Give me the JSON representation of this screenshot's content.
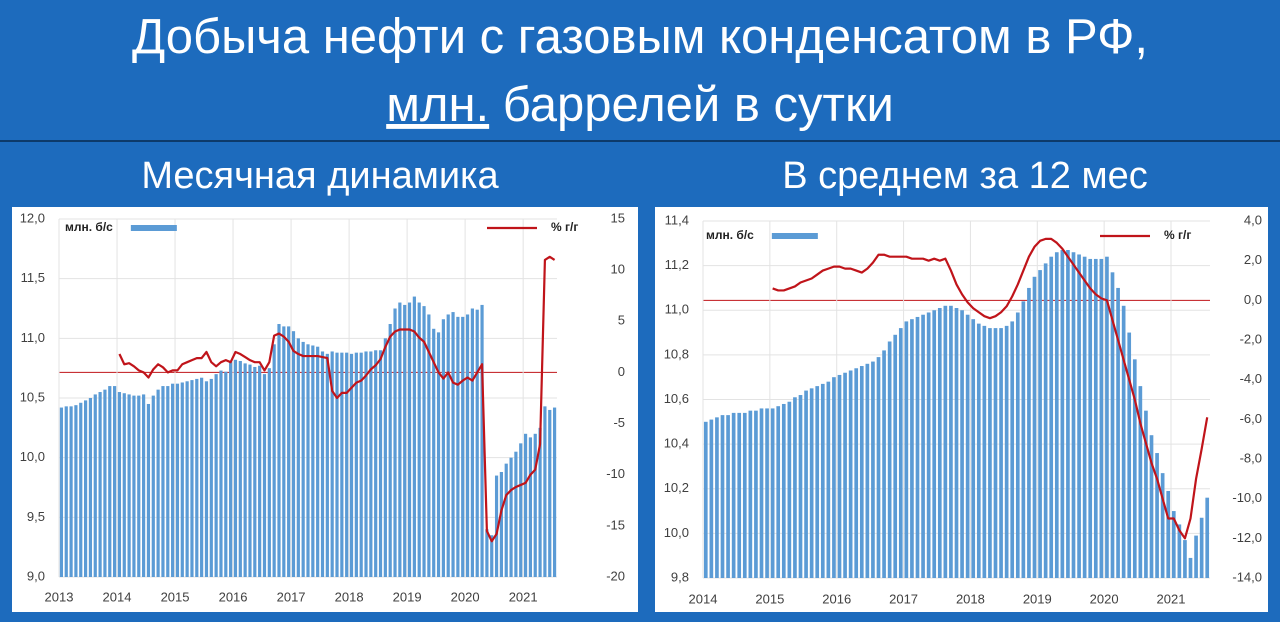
{
  "header": {
    "title": [
      "Добыча нефти с газовым конденсатом в РФ,",
      "млн.",
      "баррелей в сутки"
    ]
  },
  "chart_data": [
    {
      "type": "combo",
      "title": "Месячная динамика",
      "legend": "top",
      "grid": true,
      "categories": [
        "2013",
        null,
        null,
        null,
        null,
        null,
        null,
        null,
        null,
        null,
        null,
        null,
        "2014",
        null,
        null,
        null,
        null,
        null,
        null,
        null,
        null,
        null,
        null,
        null,
        "2015",
        null,
        null,
        null,
        null,
        null,
        null,
        null,
        null,
        null,
        null,
        null,
        "2016",
        null,
        null,
        null,
        null,
        null,
        null,
        null,
        null,
        null,
        null,
        null,
        "2017",
        null,
        null,
        null,
        null,
        null,
        null,
        null,
        null,
        null,
        null,
        null,
        "2018",
        null,
        null,
        null,
        null,
        null,
        null,
        null,
        null,
        null,
        null,
        null,
        "2019",
        null,
        null,
        null,
        null,
        null,
        null,
        null,
        null,
        null,
        null,
        null,
        "2020",
        null,
        null,
        null,
        null,
        null,
        null,
        null,
        null,
        null,
        null,
        null,
        "2021",
        null,
        null,
        null,
        null,
        null,
        null
      ],
      "series": [
        {
          "name": "млн. б/с",
          "color": "#5b9bd5",
          "values": [
            10.42,
            10.43,
            10.43,
            10.44,
            10.46,
            10.48,
            10.5,
            10.53,
            10.55,
            10.57,
            10.6,
            10.6,
            10.55,
            10.54,
            10.53,
            10.52,
            10.52,
            10.53,
            10.45,
            10.52,
            10.57,
            10.6,
            10.6,
            10.62,
            10.62,
            10.63,
            10.64,
            10.65,
            10.66,
            10.67,
            10.64,
            10.66,
            10.7,
            10.73,
            10.72,
            10.8,
            10.82,
            10.81,
            10.79,
            10.78,
            10.76,
            10.77,
            10.7,
            10.75,
            10.95,
            11.12,
            11.1,
            11.1,
            11.06,
            11.0,
            10.97,
            10.95,
            10.94,
            10.93,
            10.89,
            10.87,
            10.89,
            10.88,
            10.88,
            10.88,
            10.87,
            10.88,
            10.88,
            10.89,
            10.89,
            10.9,
            10.9,
            11.0,
            11.12,
            11.25,
            11.3,
            11.28,
            11.3,
            11.35,
            11.3,
            11.27,
            11.2,
            11.08,
            11.05,
            11.16,
            11.2,
            11.22,
            11.18,
            11.18,
            11.2,
            11.25,
            11.24,
            11.28,
            9.4,
            9.35,
            9.85,
            9.88,
            9.95,
            10.0,
            10.05,
            10.12,
            10.2,
            10.17,
            10.2,
            10.25,
            10.43,
            10.4,
            10.42
          ]
        },
        {
          "name": "% г/г",
          "color": "#c0141a",
          "axis": "y2",
          "values": [
            null,
            null,
            null,
            null,
            null,
            null,
            null,
            null,
            null,
            null,
            null,
            null,
            1.8,
            0.8,
            0.9,
            0.6,
            0.2,
            0.0,
            -0.5,
            0.3,
            0.8,
            0.5,
            0.0,
            0.2,
            0.2,
            0.8,
            1.0,
            1.2,
            1.4,
            1.4,
            2.0,
            1.0,
            0.6,
            1.0,
            1.2,
            1.0,
            2.0,
            1.8,
            1.5,
            1.2,
            1.0,
            1.0,
            0.2,
            1.0,
            3.6,
            3.8,
            3.5,
            3.0,
            2.1,
            1.8,
            1.6,
            1.6,
            1.6,
            1.6,
            1.5,
            1.4,
            -1.8,
            -2.5,
            -2.0,
            -2.0,
            -1.5,
            -1.0,
            -0.8,
            -0.3,
            0.3,
            0.7,
            1.3,
            2.5,
            3.5,
            4.0,
            4.2,
            4.2,
            4.2,
            4.0,
            3.4,
            3.0,
            2.0,
            1.0,
            0.0,
            -0.6,
            0.0,
            -1.0,
            -1.2,
            -0.8,
            -0.5,
            -0.8,
            0.0,
            0.8,
            -15.5,
            -16.5,
            -15.8,
            -13.5,
            -12.0,
            -11.5,
            -11.2,
            -11.0,
            -10.8,
            -10.0,
            -9.5,
            -7.0,
            11.0,
            11.3,
            11.0
          ]
        }
      ],
      "ylim": [
        9,
        12
      ],
      "yticks": [
        {
          "value": 9,
          "label": "9,0"
        },
        {
          "value": 9.5,
          "label": "9,5"
        },
        {
          "value": 10,
          "label": "10,0"
        },
        {
          "value": 10.5,
          "label": "10,5"
        },
        {
          "value": 11,
          "label": "11,0"
        },
        {
          "value": 11.5,
          "label": "11,5"
        },
        {
          "value": 12,
          "label": "12,0"
        }
      ],
      "y2lim": [
        -20,
        15
      ],
      "y2ticks": [
        -20,
        -15,
        -10,
        -5,
        0,
        5,
        10,
        15
      ]
    },
    {
      "type": "combo",
      "title": "В среднем за 12 мес",
      "legend": "top",
      "grid": true,
      "categories": [
        "2014",
        null,
        null,
        null,
        null,
        null,
        null,
        null,
        null,
        null,
        null,
        null,
        "2015",
        null,
        null,
        null,
        null,
        null,
        null,
        null,
        null,
        null,
        null,
        null,
        "2016",
        null,
        null,
        null,
        null,
        null,
        null,
        null,
        null,
        null,
        null,
        null,
        "2017",
        null,
        null,
        null,
        null,
        null,
        null,
        null,
        null,
        null,
        null,
        null,
        "2018",
        null,
        null,
        null,
        null,
        null,
        null,
        null,
        null,
        null,
        null,
        null,
        "2019",
        null,
        null,
        null,
        null,
        null,
        null,
        null,
        null,
        null,
        null,
        null,
        "2020",
        null,
        null,
        null,
        null,
        null,
        null,
        null,
        null,
        null,
        null,
        null,
        "2021",
        null,
        null,
        null,
        null,
        null,
        null
      ],
      "series": [
        {
          "name": "млн. б/с",
          "color": "#5b9bd5",
          "values": [
            10.5,
            10.51,
            10.52,
            10.53,
            10.53,
            10.54,
            10.54,
            10.54,
            10.55,
            10.55,
            10.56,
            10.56,
            10.56,
            10.57,
            10.58,
            10.59,
            10.61,
            10.62,
            10.64,
            10.65,
            10.66,
            10.67,
            10.68,
            10.7,
            10.71,
            10.72,
            10.73,
            10.74,
            10.75,
            10.76,
            10.77,
            10.79,
            10.82,
            10.86,
            10.89,
            10.92,
            10.95,
            10.96,
            10.97,
            10.98,
            10.99,
            11.0,
            11.01,
            11.02,
            11.02,
            11.01,
            11.0,
            10.98,
            10.96,
            10.94,
            10.93,
            10.92,
            10.92,
            10.92,
            10.93,
            10.95,
            10.99,
            11.04,
            11.1,
            11.15,
            11.18,
            11.21,
            11.24,
            11.26,
            11.27,
            11.27,
            11.26,
            11.25,
            11.24,
            11.23,
            11.23,
            11.23,
            11.24,
            11.17,
            11.1,
            11.02,
            10.9,
            10.78,
            10.66,
            10.55,
            10.44,
            10.36,
            10.27,
            10.19,
            10.1,
            10.04,
            9.97,
            9.89,
            9.99,
            10.07,
            10.16
          ]
        },
        {
          "name": "% г/г",
          "color": "#c0141a",
          "axis": "y2",
          "values": [
            null,
            null,
            null,
            null,
            null,
            null,
            null,
            null,
            null,
            null,
            null,
            null,
            0.6,
            0.5,
            0.5,
            0.6,
            0.7,
            0.9,
            1.0,
            1.1,
            1.3,
            1.5,
            1.6,
            1.7,
            1.7,
            1.6,
            1.6,
            1.5,
            1.4,
            1.6,
            1.9,
            2.3,
            2.3,
            2.2,
            2.2,
            2.2,
            2.2,
            2.1,
            2.1,
            2.1,
            2.0,
            2.1,
            2.0,
            2.1,
            1.5,
            0.8,
            0.3,
            -0.1,
            -0.4,
            -0.6,
            -0.8,
            -0.9,
            -0.8,
            -0.6,
            -0.3,
            0.2,
            0.8,
            1.5,
            2.2,
            2.7,
            3.0,
            3.1,
            3.1,
            2.9,
            2.6,
            2.2,
            1.8,
            1.4,
            1.0,
            0.6,
            0.3,
            0.1,
            0.0,
            -1.0,
            -2.0,
            -3.0,
            -4.0,
            -5.0,
            -6.2,
            -7.2,
            -8.2,
            -9.0,
            -10.0,
            -11.0,
            -11.0,
            -11.6,
            -12.0,
            -11.0,
            -9.0,
            -7.5,
            -5.9
          ]
        }
      ],
      "ylim": [
        9.8,
        11.4
      ],
      "yticks": [
        {
          "value": 9.8,
          "label": "9,8"
        },
        {
          "value": 10,
          "label": "10,0"
        },
        {
          "value": 10.2,
          "label": "10,2"
        },
        {
          "value": 10.4,
          "label": "10,4"
        },
        {
          "value": 10.6,
          "label": "10,6"
        },
        {
          "value": 10.8,
          "label": "10,8"
        },
        {
          "value": 11,
          "label": "11,0"
        },
        {
          "value": 11.2,
          "label": "11,2"
        },
        {
          "value": 11.4,
          "label": "11,4"
        }
      ],
      "y2lim": [
        -14,
        4
      ],
      "y2ticks": [
        {
          "value": -14,
          "label": "-14,0"
        },
        {
          "value": -12,
          "label": "-12,0"
        },
        {
          "value": -10,
          "label": "-10,0"
        },
        {
          "value": -8,
          "label": "-8,0"
        },
        {
          "value": -6,
          "label": "-6,0"
        },
        {
          "value": -4,
          "label": "-4,0"
        },
        {
          "value": -2,
          "label": "-2,0"
        },
        {
          "value": 0,
          "label": "0,0"
        },
        {
          "value": 2,
          "label": "2,0"
        },
        {
          "value": 4,
          "label": "4,0"
        }
      ]
    }
  ]
}
